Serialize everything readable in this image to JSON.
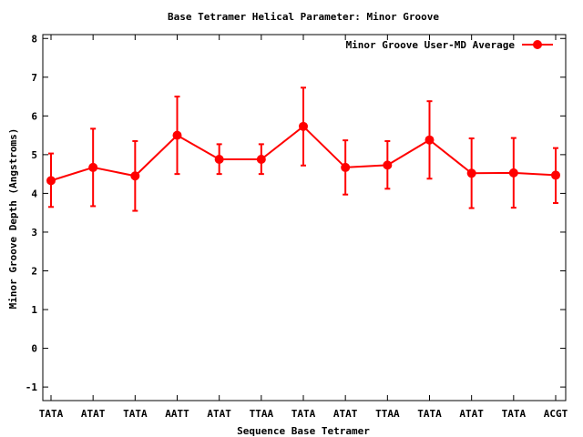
{
  "chart_data": {
    "type": "line",
    "title": "Base Tetramer Helical Parameter: Minor Groove",
    "xlabel": "Sequence Base Tetramer",
    "ylabel": "Minor Groove Depth (Angstroms)",
    "categories": [
      "TATA",
      "ATAT",
      "TATA",
      "AATT",
      "ATAT",
      "TTAA",
      "TATA",
      "ATAT",
      "TTAA",
      "TATA",
      "ATAT",
      "TATA",
      "ACGT"
    ],
    "series": [
      {
        "name": "Minor Groove User-MD Average",
        "color": "#ff0000",
        "values": [
          4.33,
          4.67,
          4.45,
          5.5,
          4.88,
          4.88,
          5.73,
          4.67,
          4.73,
          5.38,
          4.52,
          4.53,
          4.47
        ],
        "err_low": [
          3.65,
          3.67,
          3.55,
          4.5,
          4.5,
          4.5,
          4.72,
          3.97,
          4.12,
          4.38,
          3.62,
          3.63,
          3.75
        ],
        "err_high": [
          5.03,
          5.67,
          5.35,
          6.5,
          5.27,
          5.27,
          6.73,
          5.37,
          5.35,
          6.38,
          5.42,
          5.43,
          5.17
        ]
      }
    ],
    "yticks": [
      -1,
      0,
      1,
      2,
      3,
      4,
      5,
      6,
      7,
      8
    ],
    "ylim": [
      -1.35,
      8.1
    ],
    "grid": false,
    "legend": "top-right"
  }
}
